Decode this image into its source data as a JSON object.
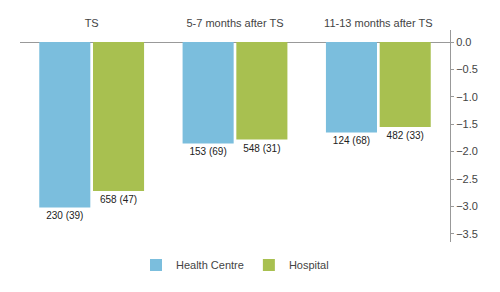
{
  "chart_data": {
    "type": "bar",
    "categories": [
      "TS",
      "5-7 months after TS",
      "11-13 months after TS"
    ],
    "series": [
      {
        "name": "Health Centre",
        "color": "#7bbedd",
        "values": [
          -3.02,
          -1.85,
          -1.65
        ],
        "annotations": [
          "230 (39)",
          "153 (69)",
          "124 (68)"
        ]
      },
      {
        "name": "Hospital",
        "color": "#a8c050",
        "values": [
          -2.72,
          -1.78,
          -1.55
        ],
        "annotations": [
          "658 (47)",
          "548 (31)",
          "482 (33)"
        ]
      }
    ],
    "ylim": [
      -3.65,
      0.22
    ],
    "yticks": [
      {
        "value": 0.0,
        "label": "0.0"
      },
      {
        "value": -0.5,
        "label": "−0.5"
      },
      {
        "value": -1.0,
        "label": "−1.0"
      },
      {
        "value": -1.5,
        "label": "−1.5"
      },
      {
        "value": -2.0,
        "label": "−2.0"
      },
      {
        "value": -2.5,
        "label": "−2.5"
      },
      {
        "value": -3.0,
        "label": "−3.0"
      },
      {
        "value": -3.5,
        "label": "−3.5"
      }
    ],
    "grid": false,
    "legend": "bottom"
  }
}
